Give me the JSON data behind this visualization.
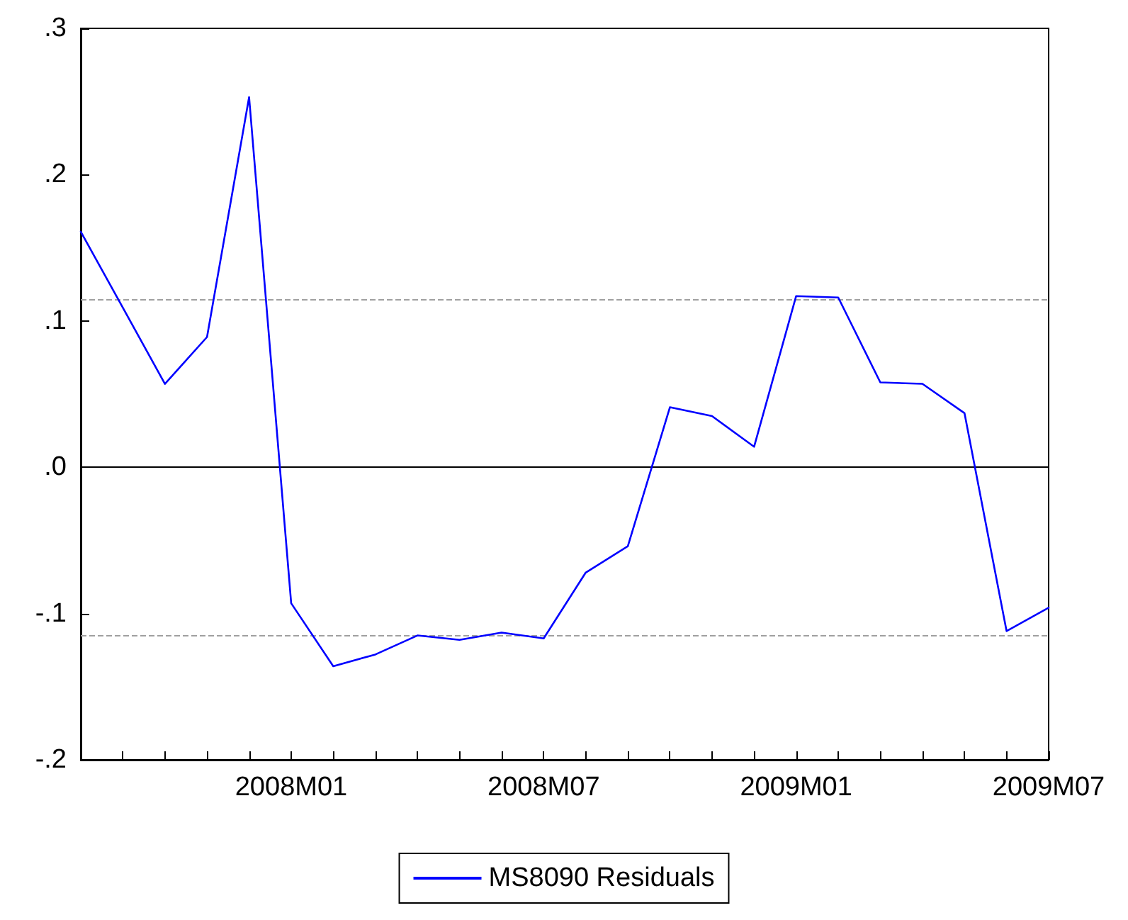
{
  "chart_data": {
    "type": "line",
    "categories": [
      null,
      null,
      null,
      null,
      null,
      "2008M01",
      null,
      null,
      null,
      null,
      null,
      "2008M07",
      null,
      null,
      null,
      null,
      null,
      "2009M01",
      null,
      null,
      null,
      null,
      null,
      "2009M07"
    ],
    "series": [
      {
        "name": "MS8090 Residuals",
        "color": "#0000ff",
        "values": [
          0.161,
          0.109,
          0.057,
          0.089,
          0.253,
          -0.093,
          -0.136,
          -0.128,
          -0.115,
          -0.118,
          -0.113,
          -0.117,
          -0.072,
          -0.054,
          0.041,
          0.035,
          0.014,
          0.117,
          0.116,
          0.058,
          0.057,
          0.037,
          -0.112,
          -0.096
        ]
      }
    ],
    "ylim": [
      -0.2,
      0.3
    ],
    "yticks": [
      {
        "value": -0.2,
        "label": "-.2"
      },
      {
        "value": -0.1,
        "label": "-.1"
      },
      {
        "value": 0,
        "label": ".0"
      },
      {
        "value": 0.1,
        "label": ".1"
      },
      {
        "value": 0.2,
        "label": ".2"
      },
      {
        "value": 0.3,
        "label": ".3"
      }
    ],
    "ref_lines": [
      {
        "axis": "y",
        "value": 0.115,
        "color": "#a0a0a0",
        "line_style": "dashed"
      },
      {
        "axis": "y",
        "value": 0,
        "color": "#000000",
        "line_style": "solid"
      },
      {
        "axis": "y",
        "value": -0.115,
        "color": "#a0a0a0",
        "line_style": "dashed"
      }
    ],
    "grid": false,
    "legend": "bottom",
    "marker": "none",
    "line_style": "solid"
  }
}
